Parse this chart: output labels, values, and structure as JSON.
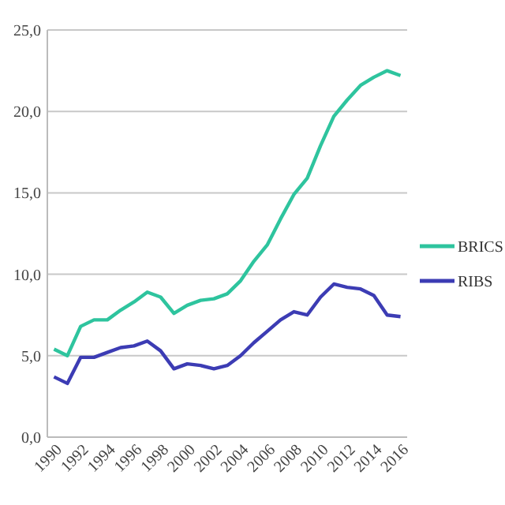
{
  "chart_data": {
    "type": "line",
    "x": [
      1990,
      1991,
      1992,
      1993,
      1994,
      1995,
      1996,
      1997,
      1998,
      1999,
      2000,
      2001,
      2002,
      2003,
      2004,
      2005,
      2006,
      2007,
      2008,
      2009,
      2010,
      2011,
      2012,
      2013,
      2014,
      2015,
      2016
    ],
    "series": [
      {
        "name": "BRICS",
        "color": "#2ec49e",
        "values": [
          5.4,
          5.0,
          6.8,
          7.2,
          7.2,
          7.8,
          8.3,
          8.9,
          8.6,
          7.6,
          8.1,
          8.4,
          8.5,
          8.8,
          9.6,
          10.8,
          11.8,
          13.4,
          14.9,
          15.9,
          17.9,
          19.7,
          20.7,
          21.6,
          22.1,
          22.5,
          22.2
        ]
      },
      {
        "name": "RIBS",
        "color": "#3c3cb4",
        "values": [
          3.7,
          3.3,
          4.9,
          4.9,
          5.2,
          5.5,
          5.6,
          5.9,
          5.3,
          4.2,
          4.5,
          4.4,
          4.2,
          4.4,
          5.0,
          5.8,
          6.5,
          7.2,
          7.7,
          7.5,
          8.6,
          9.4,
          9.2,
          9.1,
          8.7,
          7.5,
          7.4
        ]
      }
    ],
    "xlim": [
      1989.5,
      2016.5
    ],
    "xticks": [
      1990,
      1992,
      1994,
      1996,
      1998,
      2000,
      2002,
      2004,
      2006,
      2008,
      2010,
      2012,
      2014,
      2016
    ],
    "ylim": [
      0,
      25
    ],
    "yticks": [
      {
        "value": 0,
        "label": "0,0"
      },
      {
        "value": 5,
        "label": "5,0"
      },
      {
        "value": 10,
        "label": "10,0"
      },
      {
        "value": 15,
        "label": "15,0"
      },
      {
        "value": 20,
        "label": "20,0"
      },
      {
        "value": 25,
        "label": "25,0"
      }
    ],
    "grid": "y",
    "legend": "right",
    "marker": "none",
    "line_style": "solid"
  }
}
